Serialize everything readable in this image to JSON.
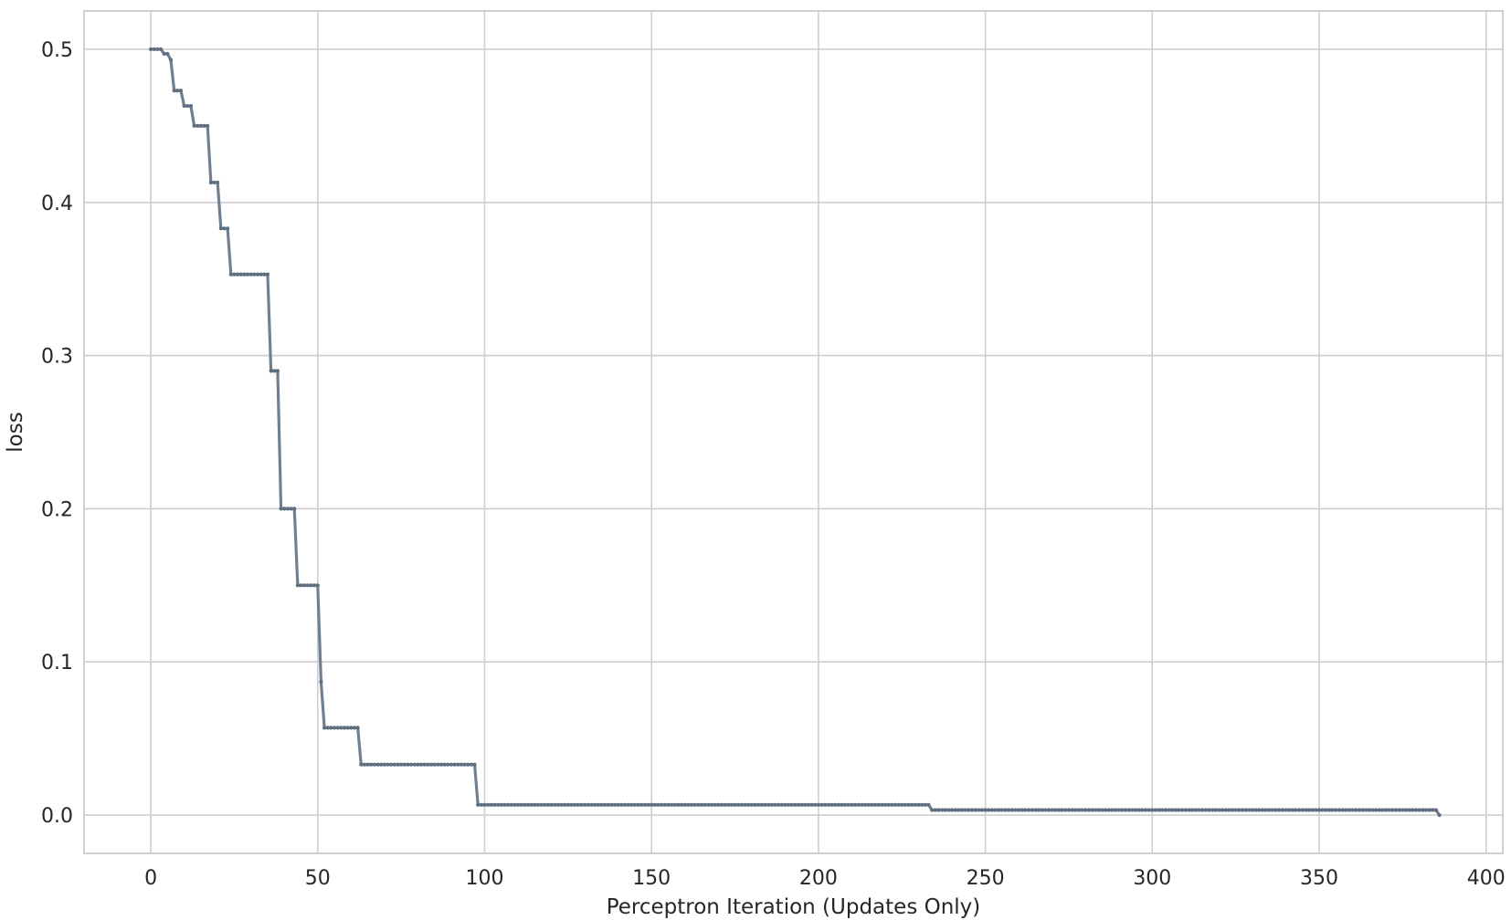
{
  "chart_data": {
    "type": "line",
    "title": "",
    "xlabel": "Perceptron Iteration (Updates Only)",
    "ylabel": "loss",
    "xlim": [
      -20,
      405
    ],
    "ylim": [
      -0.025,
      0.525
    ],
    "xticks": [
      0,
      50,
      100,
      150,
      200,
      250,
      300,
      350,
      400
    ],
    "xtick_labels": [
      "0",
      "50",
      "100",
      "150",
      "200",
      "250",
      "300",
      "350",
      "400"
    ],
    "yticks": [
      0.0,
      0.1,
      0.2,
      0.3,
      0.4,
      0.5
    ],
    "ytick_labels": [
      "0.0",
      "0.1",
      "0.2",
      "0.3",
      "0.4",
      "0.5"
    ],
    "grid": true,
    "line_color": "#708090",
    "series": [
      {
        "steps": [
          {
            "from": 0,
            "to": 3,
            "y": 0.5
          },
          {
            "from": 4,
            "to": 5,
            "y": 0.497
          },
          {
            "from": 6,
            "to": 6,
            "y": 0.493
          },
          {
            "from": 7,
            "to": 9,
            "y": 0.473
          },
          {
            "from": 10,
            "to": 12,
            "y": 0.463
          },
          {
            "from": 13,
            "to": 17,
            "y": 0.45
          },
          {
            "from": 18,
            "to": 20,
            "y": 0.413
          },
          {
            "from": 21,
            "to": 23,
            "y": 0.383
          },
          {
            "from": 24,
            "to": 35,
            "y": 0.353
          },
          {
            "from": 36,
            "to": 38,
            "y": 0.29
          },
          {
            "from": 39,
            "to": 43,
            "y": 0.2
          },
          {
            "from": 44,
            "to": 50,
            "y": 0.15
          },
          {
            "from": 51,
            "to": 51,
            "y": 0.087
          },
          {
            "from": 52,
            "to": 62,
            "y": 0.057
          },
          {
            "from": 63,
            "to": 97,
            "y": 0.033
          },
          {
            "from": 98,
            "to": 233,
            "y": 0.0067
          },
          {
            "from": 234,
            "to": 385,
            "y": 0.0033
          },
          {
            "from": 386,
            "to": 386,
            "y": 0.0
          }
        ]
      }
    ]
  }
}
